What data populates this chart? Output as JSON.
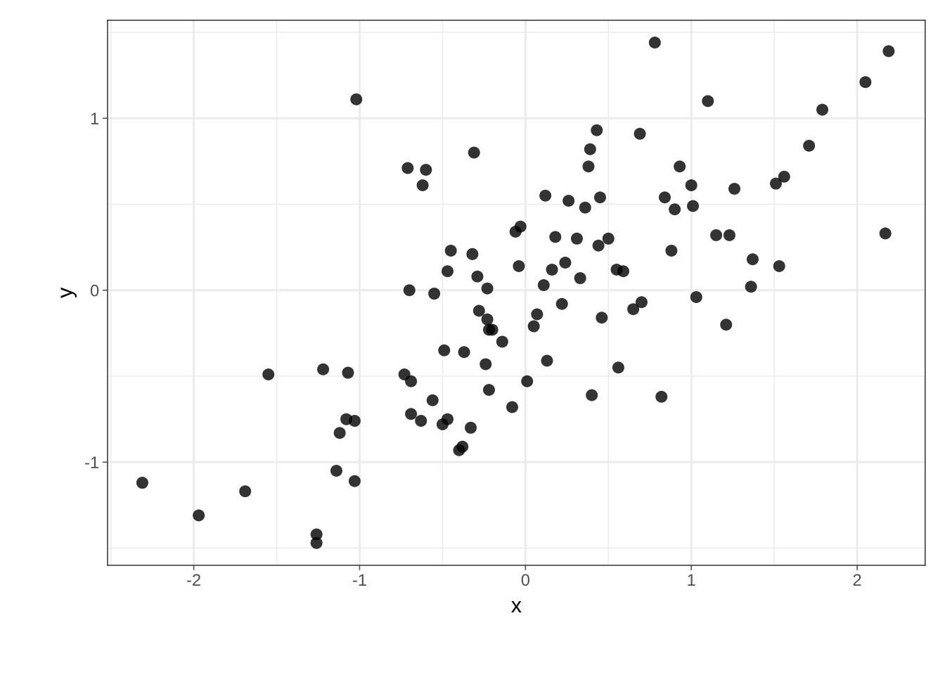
{
  "chart_data": {
    "type": "scatter",
    "xlabel": "x",
    "ylabel": "y",
    "xlim": [
      -2.52,
      2.41
    ],
    "ylim": [
      -1.6,
      1.57
    ],
    "xticks": [
      -2,
      -1,
      0,
      1,
      2
    ],
    "yticks": [
      -1,
      0,
      1
    ],
    "grid": true,
    "marker": "circle",
    "color": "#000000",
    "x": [
      -2.31,
      -1.97,
      -1.69,
      -1.55,
      -1.26,
      -1.26,
      -1.22,
      -1.14,
      -1.12,
      -1.08,
      -1.07,
      -1.03,
      -1.03,
      -1.02,
      -0.73,
      -0.71,
      -0.7,
      -0.69,
      -0.69,
      -0.63,
      -0.62,
      -0.6,
      -0.56,
      -0.55,
      -0.5,
      -0.49,
      -0.47,
      -0.47,
      -0.45,
      -0.4,
      -0.38,
      -0.37,
      -0.33,
      -0.32,
      -0.31,
      -0.29,
      -0.28,
      -0.24,
      -0.23,
      -0.23,
      -0.22,
      -0.22,
      -0.2,
      -0.14,
      -0.08,
      -0.06,
      -0.04,
      -0.03,
      0.01,
      0.05,
      0.07,
      0.11,
      0.12,
      0.13,
      0.16,
      0.18,
      0.22,
      0.24,
      0.26,
      0.31,
      0.33,
      0.36,
      0.38,
      0.39,
      0.4,
      0.43,
      0.44,
      0.45,
      0.46,
      0.5,
      0.55,
      0.56,
      0.59,
      0.65,
      0.69,
      0.7,
      0.78,
      0.82,
      0.84,
      0.88,
      0.9,
      0.93,
      1.0,
      1.01,
      1.03,
      1.1,
      1.15,
      1.21,
      1.23,
      1.26,
      1.36,
      1.37,
      1.51,
      1.53,
      1.56,
      1.71,
      1.79,
      2.05,
      2.17,
      2.19
    ],
    "values": [
      -1.12,
      -1.31,
      -1.17,
      -0.49,
      -1.42,
      -1.47,
      -0.46,
      -1.05,
      -0.83,
      -0.75,
      -0.48,
      -0.76,
      -1.11,
      1.11,
      -0.49,
      0.71,
      0.0,
      -0.53,
      -0.72,
      -0.76,
      0.61,
      0.7,
      -0.64,
      -0.02,
      -0.78,
      -0.35,
      -0.75,
      0.11,
      0.23,
      -0.93,
      -0.91,
      -0.36,
      -0.8,
      0.21,
      0.8,
      0.08,
      -0.12,
      -0.43,
      0.01,
      -0.17,
      -0.58,
      -0.23,
      -0.23,
      -0.3,
      -0.68,
      0.34,
      0.14,
      0.37,
      -0.53,
      -0.21,
      -0.14,
      0.03,
      0.55,
      -0.41,
      0.12,
      0.31,
      -0.08,
      0.16,
      0.52,
      0.3,
      0.07,
      0.48,
      0.72,
      0.82,
      -0.61,
      0.93,
      0.26,
      0.54,
      -0.16,
      0.3,
      0.12,
      -0.45,
      0.11,
      -0.11,
      0.91,
      -0.07,
      1.44,
      -0.62,
      0.54,
      0.23,
      0.47,
      0.72,
      0.61,
      0.49,
      -0.04,
      1.1,
      0.32,
      -0.2,
      0.32,
      0.59,
      0.02,
      0.18,
      0.62,
      0.14,
      0.66,
      0.84,
      1.05,
      1.21,
      0.33,
      1.39
    ]
  }
}
